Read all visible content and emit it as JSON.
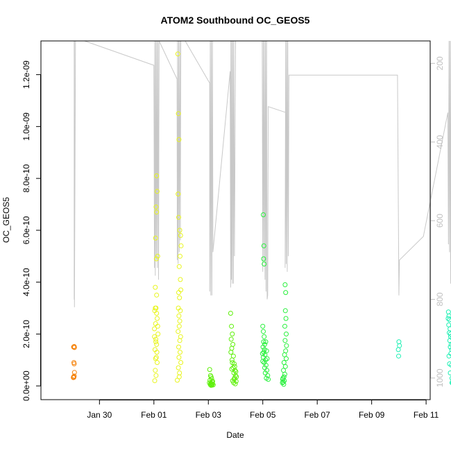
{
  "chart_data": {
    "type": "scatter",
    "title": "ATOM2 Southbound OC_GEOS5",
    "xlabel": "Date",
    "ylabel": "OC_GEOS5",
    "x_tick_labels": [
      "Jan 30",
      "Feb 01",
      "Feb 03",
      "Feb 05",
      "Feb 07",
      "Feb 09",
      "Feb 11"
    ],
    "y_tick_labels": [
      "0.0e+00",
      "2.0e-10",
      "4.0e-10",
      "6.0e-10",
      "8.0e-10",
      "1.0e-09",
      "1.2e-09"
    ],
    "right_axis_tick_labels": [
      "200",
      "400",
      "600",
      "800",
      "1000"
    ],
    "x_range_days_since_jan28": [
      -0.15,
      14.15
    ],
    "ylim": [
      -5.3e-11,
      1.33e-09
    ],
    "right_axis_range": [
      1055,
      143
    ],
    "grid": false,
    "colors": {
      "jan29": "#f5820a",
      "feb01": "#e8f51e",
      "feb03": "#5ef00a",
      "feb05": "#28f03c",
      "feb10": "#1ef0b4",
      "profile_line": "#c8c8c8",
      "axis": "#000000",
      "right_axis": "#c0c0c0"
    },
    "series": [
      {
        "color_key": "jan29",
        "points": [
          [
            1.05,
            1.5e-10
          ],
          [
            1.07,
            1.52e-10
          ],
          [
            1.08,
            1.48e-10
          ],
          [
            1.06,
            9e-11
          ],
          [
            1.07,
            8.5e-11
          ],
          [
            1.08,
            5.2e-11
          ],
          [
            1.05,
            3.5e-11
          ],
          [
            1.06,
            3.3e-11
          ],
          [
            1.07,
            3.8e-11
          ],
          [
            1.04,
            3.2e-11
          ]
        ]
      },
      {
        "color_key": "feb01",
        "points": [
          [
            4.05,
            3.8e-10
          ],
          [
            4.1,
            3.5e-10
          ],
          [
            4.08,
            3e-10
          ],
          [
            4.03,
            2.9e-10
          ],
          [
            4.12,
            2.6e-10
          ],
          [
            4.06,
            2.4e-10
          ],
          [
            4.02,
            2.2e-10
          ],
          [
            4.15,
            2e-10
          ],
          [
            4.07,
            1.8e-10
          ],
          [
            4.1,
            1.6e-10
          ],
          [
            4.04,
            1.4e-10
          ],
          [
            4.09,
            1.1e-10
          ],
          [
            4.12,
            9e-11
          ],
          [
            4.05,
            6e-11
          ],
          [
            4.08,
            4e-11
          ],
          [
            4.03,
            2e-11
          ],
          [
            4.11,
            1.3e-10
          ],
          [
            4.06,
            1.05e-10
          ],
          [
            4.14,
            2.3e-10
          ],
          [
            4.02,
            1.9e-10
          ],
          [
            4.1,
            8.1e-10
          ],
          [
            4.12,
            7.5e-10
          ],
          [
            4.08,
            6.9e-10
          ],
          [
            4.1,
            6.7e-10
          ],
          [
            4.06,
            5.7e-10
          ],
          [
            4.14,
            5e-10
          ],
          [
            4.09,
            4.9e-10
          ],
          [
            4.05,
            3e-10
          ],
          [
            4.1,
            2.8e-10
          ],
          [
            4.07,
            1.7e-10
          ],
          [
            4.88,
            1.28e-09
          ],
          [
            4.9,
            1.05e-09
          ],
          [
            4.92,
            9.5e-10
          ],
          [
            4.89,
            7.4e-10
          ],
          [
            4.91,
            6.5e-10
          ],
          [
            4.95,
            6e-10
          ],
          [
            4.98,
            5.8e-10
          ],
          [
            5.0,
            5.4e-10
          ],
          [
            4.96,
            5e-10
          ],
          [
            4.93,
            4.6e-10
          ],
          [
            4.97,
            4.1e-10
          ],
          [
            4.99,
            3.7e-10
          ],
          [
            4.91,
            3.6e-10
          ],
          [
            4.94,
            3.4e-10
          ],
          [
            4.9,
            3e-10
          ],
          [
            4.97,
            2.9e-10
          ],
          [
            4.92,
            2.7e-10
          ],
          [
            4.95,
            2.5e-10
          ],
          [
            4.93,
            2.3e-10
          ],
          [
            4.89,
            2.1e-10
          ],
          [
            4.98,
            1.9e-10
          ],
          [
            4.95,
            1.75e-10
          ],
          [
            4.91,
            1.5e-10
          ],
          [
            4.96,
            1.3e-10
          ],
          [
            4.92,
            1.1e-10
          ],
          [
            4.99,
            9e-11
          ],
          [
            4.9,
            7e-11
          ],
          [
            4.94,
            5e-11
          ],
          [
            4.86,
            2.2e-11
          ],
          [
            4.93,
            3.5e-11
          ]
        ]
      },
      {
        "color_key": "feb03",
        "points": [
          [
            6.05,
            6.3e-11
          ],
          [
            6.08,
            4e-11
          ],
          [
            6.1,
            3.5e-11
          ],
          [
            6.12,
            2.8e-11
          ],
          [
            6.06,
            2.2e-11
          ],
          [
            6.14,
            1.5e-11
          ],
          [
            6.09,
            1e-11
          ],
          [
            6.11,
            7e-12
          ],
          [
            6.07,
            5e-12
          ],
          [
            6.13,
            3e-12
          ],
          [
            6.16,
            1.8e-11
          ],
          [
            6.04,
            1.2e-11
          ],
          [
            6.18,
            4e-12
          ],
          [
            6.1,
            2e-12
          ],
          [
            6.15,
            8e-12
          ],
          [
            6.82,
            2.8e-10
          ],
          [
            6.85,
            2.3e-10
          ],
          [
            6.88,
            2e-10
          ],
          [
            6.84,
            1.8e-10
          ],
          [
            6.9,
            1.6e-10
          ],
          [
            6.86,
            1.45e-10
          ],
          [
            6.83,
            1.3e-10
          ],
          [
            6.92,
            1.15e-10
          ],
          [
            6.87,
            1e-10
          ],
          [
            6.95,
            8.5e-11
          ],
          [
            6.91,
            7e-11
          ],
          [
            6.98,
            6e-11
          ],
          [
            6.94,
            5e-11
          ],
          [
            7.0,
            4e-11
          ],
          [
            6.96,
            3e-11
          ],
          [
            6.89,
            2e-11
          ],
          [
            7.02,
            1.8e-11
          ],
          [
            6.93,
            1.2e-11
          ],
          [
            6.99,
            8e-12
          ],
          [
            6.97,
            7.5e-11
          ],
          [
            7.01,
            5.5e-11
          ],
          [
            6.88,
            9e-11
          ],
          [
            6.86,
            6.5e-11
          ],
          [
            7.03,
            3.5e-11
          ],
          [
            6.95,
            2.5e-11
          ]
        ]
      },
      {
        "color_key": "feb05",
        "points": [
          [
            8.02,
            6.6e-10
          ],
          [
            8.04,
            5.4e-10
          ],
          [
            8.03,
            4.9e-10
          ],
          [
            8.05,
            4.7e-10
          ],
          [
            8.0,
            2.3e-10
          ],
          [
            8.02,
            2.1e-10
          ],
          [
            8.05,
            1.9e-10
          ],
          [
            8.03,
            1.7e-10
          ],
          [
            8.07,
            1.6e-10
          ],
          [
            8.01,
            1.5e-10
          ],
          [
            8.06,
            1.4e-10
          ],
          [
            8.04,
            1.3e-10
          ],
          [
            8.08,
            1.2e-10
          ],
          [
            8.02,
            1.1e-10
          ],
          [
            8.1,
            1e-10
          ],
          [
            8.05,
            9e-11
          ],
          [
            8.12,
            8e-11
          ],
          [
            8.07,
            7e-11
          ],
          [
            8.15,
            6e-11
          ],
          [
            8.09,
            5e-11
          ],
          [
            8.18,
            4e-11
          ],
          [
            8.13,
            3e-11
          ],
          [
            8.2,
            2.5e-11
          ],
          [
            8.11,
            1.7e-10
          ],
          [
            8.14,
            1.35e-10
          ],
          [
            8.16,
            1.05e-10
          ],
          [
            7.99,
            1.25e-10
          ],
          [
            8.0,
            9.5e-11
          ],
          [
            8.82,
            3.9e-10
          ],
          [
            8.84,
            3.6e-10
          ],
          [
            8.83,
            2.9e-10
          ],
          [
            8.85,
            2.6e-10
          ],
          [
            8.81,
            2.3e-10
          ],
          [
            8.86,
            2e-10
          ],
          [
            8.82,
            1.75e-10
          ],
          [
            8.87,
            1.55e-10
          ],
          [
            8.84,
            1.35e-10
          ],
          [
            8.8,
            1.2e-10
          ],
          [
            8.86,
            1.05e-10
          ],
          [
            8.78,
            9e-11
          ],
          [
            8.83,
            7.5e-11
          ],
          [
            8.76,
            6e-11
          ],
          [
            8.81,
            4.5e-11
          ],
          [
            8.74,
            3e-11
          ],
          [
            8.79,
            2e-11
          ],
          [
            8.72,
            1.2e-11
          ],
          [
            8.77,
            6e-12
          ],
          [
            8.75,
            1.5e-11
          ],
          [
            8.73,
            2.5e-11
          ],
          [
            8.78,
            3.5e-11
          ]
        ]
      },
      {
        "color_key": "feb10",
        "points": [
          [
            13.0,
            1.7e-10
          ],
          [
            12.98,
            1.4e-10
          ],
          [
            13.02,
            1.55e-10
          ],
          [
            12.99,
            1.15e-10
          ],
          [
            14.82,
            2.85e-10
          ],
          [
            14.84,
            2.7e-10
          ],
          [
            14.86,
            2.55e-10
          ],
          [
            14.83,
            2.35e-10
          ],
          [
            14.88,
            2.2e-10
          ],
          [
            14.85,
            2.05e-10
          ],
          [
            14.9,
            1.9e-10
          ],
          [
            14.87,
            1.75e-10
          ],
          [
            14.92,
            1.6e-10
          ],
          [
            14.89,
            1.5e-10
          ],
          [
            14.94,
            1.4e-10
          ],
          [
            14.91,
            1.25e-10
          ],
          [
            14.86,
            8.5e-11
          ],
          [
            14.93,
            8e-11
          ],
          [
            14.89,
            5e-11
          ],
          [
            14.95,
            3e-11
          ],
          [
            14.97,
            1.5e-11
          ],
          [
            14.99,
            8e-12
          ],
          [
            14.95,
            1.2e-11
          ],
          [
            14.84,
            1.15e-10
          ],
          [
            14.96,
            1.85e-10
          ],
          [
            14.98,
            1.65e-10
          ],
          [
            14.81,
            2.6e-10
          ],
          [
            14.9,
            2e-10
          ]
        ]
      }
    ],
    "pressure_profile": [
      [
        1.06,
        800
      ],
      [
        1.07,
        800
      ],
      [
        1.07,
        143
      ],
      [
        1.08,
        143
      ],
      [
        1.08,
        820
      ],
      [
        1.12,
        143
      ],
      [
        1.45,
        143
      ],
      [
        4.0,
        205
      ],
      [
        4.02,
        720
      ],
      [
        4.03,
        143
      ],
      [
        4.05,
        740
      ],
      [
        4.07,
        143
      ],
      [
        4.09,
        700
      ],
      [
        4.11,
        143
      ],
      [
        4.13,
        720
      ],
      [
        4.15,
        143
      ],
      [
        4.17,
        750
      ],
      [
        4.19,
        143
      ],
      [
        4.85,
        240
      ],
      [
        4.86,
        700
      ],
      [
        4.87,
        143
      ],
      [
        4.89,
        710
      ],
      [
        4.91,
        143
      ],
      [
        4.93,
        680
      ],
      [
        4.95,
        143
      ],
      [
        4.97,
        650
      ],
      [
        4.99,
        143
      ],
      [
        5.15,
        143
      ],
      [
        6.05,
        250
      ],
      [
        6.05,
        780
      ],
      [
        6.07,
        143
      ],
      [
        6.09,
        790
      ],
      [
        6.11,
        143
      ],
      [
        6.13,
        790
      ],
      [
        6.15,
        143
      ],
      [
        6.17,
        680
      ],
      [
        6.8,
        220
      ],
      [
        6.82,
        770
      ],
      [
        6.83,
        143
      ],
      [
        6.85,
        750
      ],
      [
        6.86,
        143
      ],
      [
        6.88,
        760
      ],
      [
        6.9,
        143
      ],
      [
        6.92,
        760
      ],
      [
        6.94,
        143
      ],
      [
        6.96,
        690
      ],
      [
        7.0,
        143
      ],
      [
        7.98,
        143
      ],
      [
        8.0,
        730
      ],
      [
        8.02,
        143
      ],
      [
        8.04,
        700
      ],
      [
        8.06,
        143
      ],
      [
        8.08,
        750
      ],
      [
        8.1,
        143
      ],
      [
        8.12,
        780
      ],
      [
        8.14,
        143
      ],
      [
        8.16,
        800
      ],
      [
        8.18,
        790
      ],
      [
        8.2,
        310
      ],
      [
        8.85,
        325
      ],
      [
        8.82,
        720
      ],
      [
        8.84,
        143
      ],
      [
        8.86,
        710
      ],
      [
        8.88,
        143
      ],
      [
        8.9,
        730
      ],
      [
        8.92,
        143
      ],
      [
        8.94,
        690
      ],
      [
        8.96,
        230
      ],
      [
        12.95,
        230
      ],
      [
        13.0,
        790
      ],
      [
        13.02,
        700
      ],
      [
        13.9,
        640
      ],
      [
        14.8,
        325
      ],
      [
        14.82,
        660
      ],
      [
        14.84,
        143
      ],
      [
        14.86,
        680
      ],
      [
        14.88,
        143
      ],
      [
        14.9,
        760
      ],
      [
        14.92,
        143
      ],
      [
        14.94,
        760
      ],
      [
        14.96,
        640
      ],
      [
        14.98,
        143
      ]
    ]
  }
}
